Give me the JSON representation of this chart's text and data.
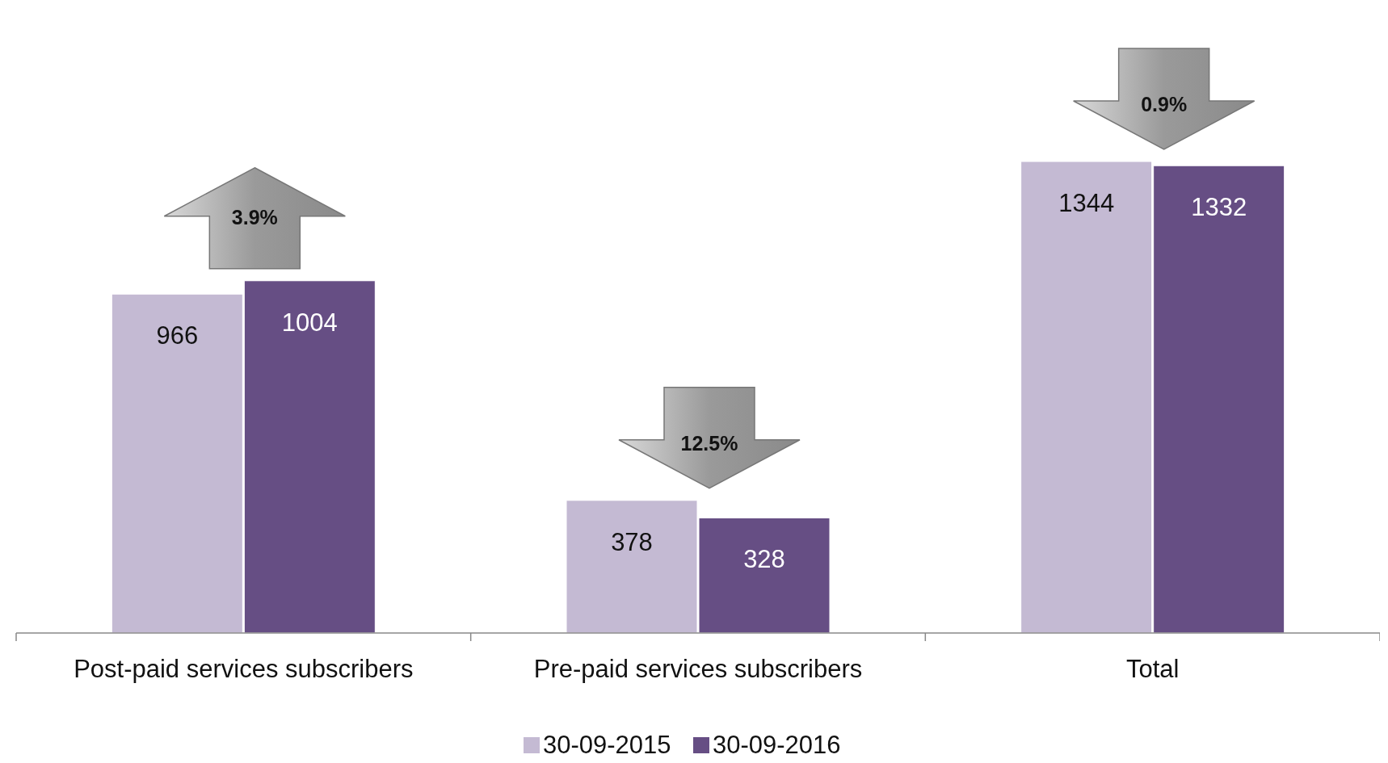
{
  "chart_data": {
    "type": "bar",
    "categories": [
      "Post-paid services subscribers",
      "Pre-paid services subscribers",
      "Total"
    ],
    "series": [
      {
        "name": "30-09-2015",
        "color": "#c4bad3",
        "values": [
          966,
          378,
          1344
        ]
      },
      {
        "name": "30-09-2016",
        "color": "#664e84",
        "values": [
          1004,
          328,
          1332
        ]
      }
    ],
    "data_labels": true,
    "legend": "bottom",
    "annotations": [
      "3.9%",
      "12.5%",
      "0.9%"
    ]
  }
}
